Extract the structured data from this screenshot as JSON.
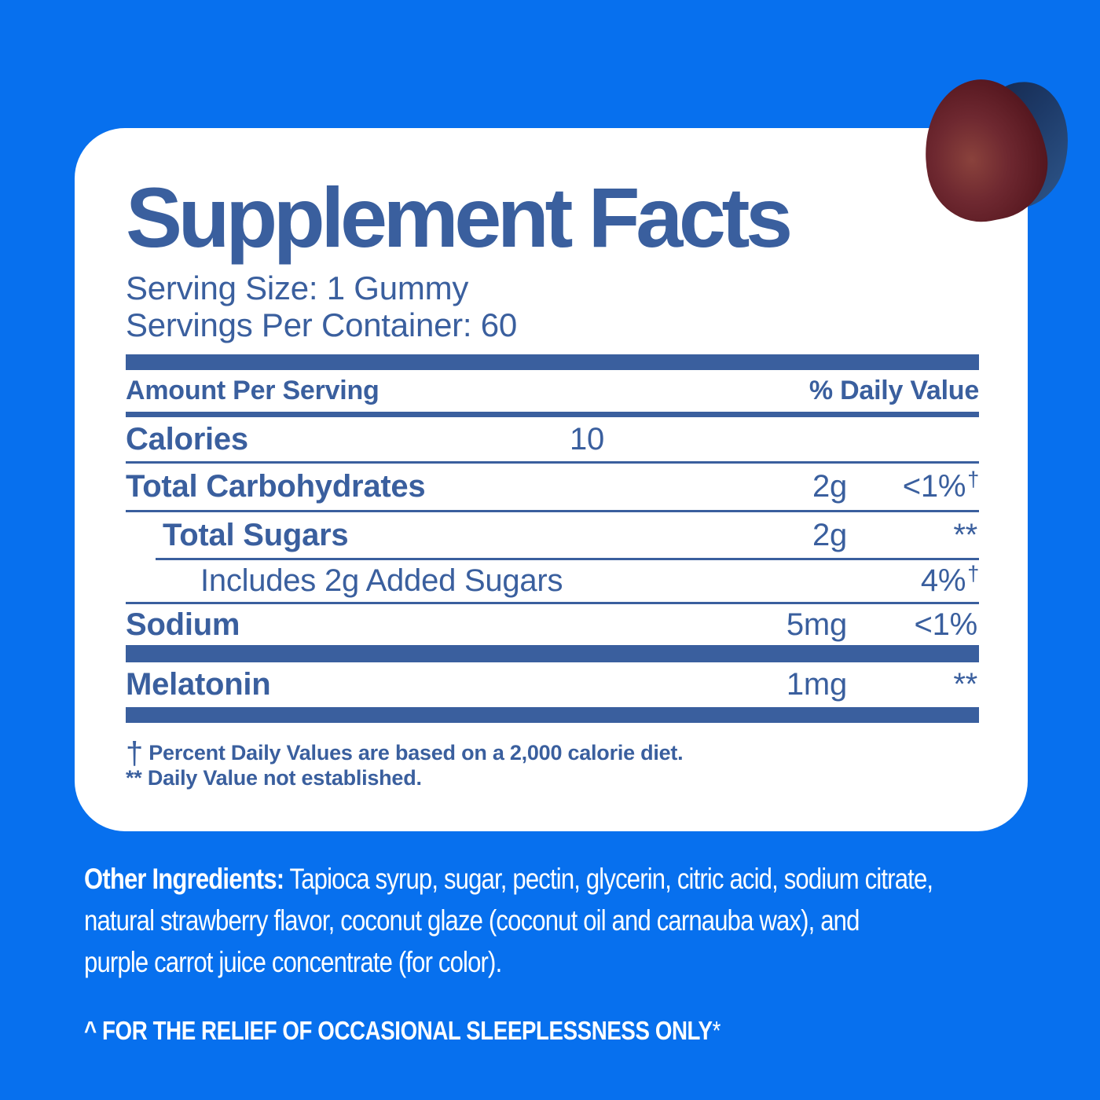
{
  "colors": {
    "background": "#0770EE",
    "label_blue": "#3A5F9E",
    "panel_bg": "#FFFFFF",
    "bottom_text": "#FFFFFF",
    "gummy_maroon": "#5A1A22",
    "gummy_shadow_navy": "#1D3A68"
  },
  "panel": {
    "title": "Supplement Facts",
    "serving_size": "Serving Size: 1 Gummy",
    "servings_per_container": "Servings Per Container: 60",
    "header": {
      "left": "Amount Per Serving",
      "right": "% Daily Value"
    },
    "rows": [
      {
        "label": "Calories",
        "value": "10"
      },
      {
        "label": "Total Carbohydrates",
        "amount": "2g",
        "dv": "<1%",
        "dagger": "†"
      },
      {
        "label": "Total Sugars",
        "amount": "2g",
        "dv": "**",
        "dagger": ""
      },
      {
        "label": "Includes 2g Added Sugars",
        "amount": "",
        "dv": "4%",
        "dagger": "†"
      },
      {
        "label": "Sodium",
        "amount": "5mg",
        "dv": "<1%",
        "dagger": ""
      },
      {
        "label": "Melatonin",
        "amount": "1mg",
        "dv": "**",
        "dagger": ""
      }
    ],
    "footnotes": [
      {
        "symbol": "†",
        "text": "Percent Daily Values are based on a 2,000 calorie diet."
      },
      {
        "symbol": "**",
        "text": "Daily Value not established."
      }
    ]
  },
  "other_ingredients": {
    "label": "Other Ingredients:",
    "lines": [
      "Tapioca syrup, sugar, pectin, glycerin, citric acid, sodium citrate,",
      "natural strawberry flavor, coconut glaze (coconut oil and carnauba wax), and",
      "purple carrot juice concentrate (for color)."
    ]
  },
  "claim": {
    "text": "^ FOR THE RELIEF OF OCCASIONAL SLEEPLESSNESS ONLY",
    "asterisk": "*"
  }
}
